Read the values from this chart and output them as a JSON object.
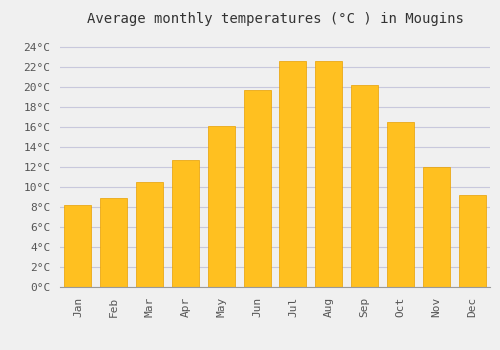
{
  "title": "Average monthly temperatures (°C ) in Mougins",
  "months": [
    "Jan",
    "Feb",
    "Mar",
    "Apr",
    "May",
    "Jun",
    "Jul",
    "Aug",
    "Sep",
    "Oct",
    "Nov",
    "Dec"
  ],
  "temperatures": [
    8.2,
    8.9,
    10.5,
    12.7,
    16.1,
    19.7,
    22.6,
    22.6,
    20.2,
    16.5,
    12.0,
    9.2
  ],
  "bar_color": "#FFC020",
  "bar_edge_color": "#E8A000",
  "background_color": "#F0F0F0",
  "grid_color": "#C8C8DC",
  "ytick_labels": [
    "0°C",
    "2°C",
    "4°C",
    "6°C",
    "8°C",
    "10°C",
    "12°C",
    "14°C",
    "16°C",
    "18°C",
    "20°C",
    "22°C",
    "24°C"
  ],
  "ytick_values": [
    0,
    2,
    4,
    6,
    8,
    10,
    12,
    14,
    16,
    18,
    20,
    22,
    24
  ],
  "ylim": [
    0,
    25.5
  ],
  "title_fontsize": 10,
  "tick_fontsize": 8,
  "font_family": "monospace",
  "bar_width": 0.75
}
